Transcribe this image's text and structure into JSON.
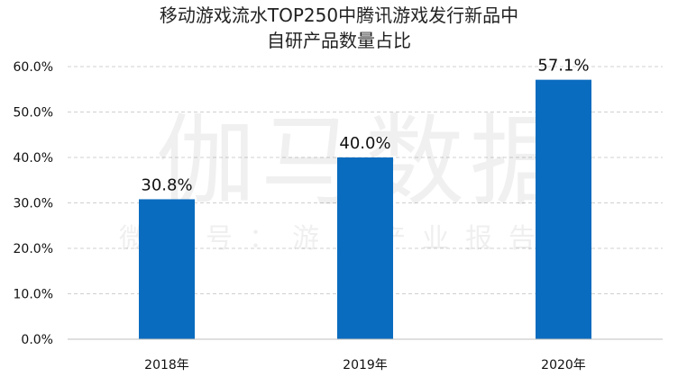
{
  "chart_data": {
    "type": "bar",
    "title_line1": "移动游戏流水TOP250中腾讯游戏发行新品中",
    "title_line2": "自研产品数量占比",
    "categories": [
      "2018年",
      "2019年",
      "2020年"
    ],
    "values": [
      30.8,
      40.0,
      57.1
    ],
    "data_labels": [
      "30.8%",
      "40.0%",
      "57.1%"
    ],
    "ylim": [
      0,
      60
    ],
    "yticks": [
      0,
      10,
      20,
      30,
      40,
      50,
      60
    ],
    "ytick_labels": [
      "0.0%",
      "10.0%",
      "20.0%",
      "30.0%",
      "40.0%",
      "50.0%",
      "60.0%"
    ],
    "grid": true,
    "bar_color": "#0a6cbf",
    "grid_color": "#d0d0d0"
  },
  "watermark": {
    "main": "伽马数据",
    "sub": "微信号：游戏产业报告"
  }
}
